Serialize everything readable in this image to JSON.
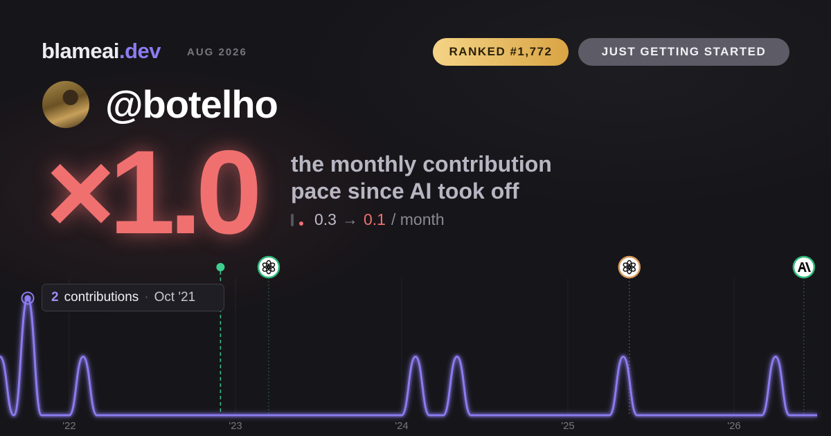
{
  "header": {
    "brand": "blameai",
    "brand_tld": ".dev",
    "period": "AUG 2026",
    "rank_badge": "RANKED #1,772",
    "status_badge": "JUST GETTING STARTED",
    "handle": "@botelho",
    "multiplier": "×1.0",
    "caption": "the monthly contribution pace since AI took off",
    "stats": {
      "before": "0.3",
      "arrow": "→",
      "after": "0.1",
      "unit": "/ month"
    }
  },
  "chart_data": {
    "type": "line",
    "x": [
      2021.5833,
      2021.6667,
      2021.75,
      2021.8333,
      2021.9167,
      2022,
      2022.0833,
      2022.1667,
      2022.25,
      2022.3333,
      2022.4167,
      2022.5,
      2022.5833,
      2022.6667,
      2022.75,
      2022.8333,
      2022.9167,
      2023,
      2023.0833,
      2023.1667,
      2023.25,
      2023.3333,
      2023.4167,
      2023.5,
      2023.5833,
      2023.6667,
      2023.75,
      2023.8333,
      2023.9167,
      2024,
      2024.0833,
      2024.1667,
      2024.25,
      2024.3333,
      2024.4167,
      2024.5,
      2024.5833,
      2024.6667,
      2024.75,
      2024.8333,
      2024.9167,
      2025,
      2025.0833,
      2025.1667,
      2025.25,
      2025.3333,
      2025.4167,
      2025.5,
      2025.5833,
      2025.6667,
      2025.75,
      2025.8333,
      2025.9167,
      2026,
      2026.0833,
      2026.1667,
      2026.25,
      2026.3333,
      2026.4167,
      2026.5
    ],
    "series": [
      {
        "color": "#8b7cf0",
        "values": [
          1,
          0,
          2,
          0,
          0,
          0,
          1,
          0,
          0,
          0,
          0,
          0,
          0,
          0,
          0,
          0,
          0,
          0,
          0,
          0,
          0,
          0,
          0,
          0,
          0,
          0,
          0,
          0,
          0,
          0,
          1,
          0,
          0,
          1,
          0,
          0,
          0,
          0,
          0,
          0,
          0,
          0,
          0,
          0,
          0,
          1,
          0,
          0,
          0,
          0,
          0,
          0,
          0,
          0,
          0,
          0,
          1,
          0,
          0,
          0
        ]
      }
    ],
    "xlim": [
      2021.5833,
      2026.5833
    ],
    "ylim": [
      0,
      2.4
    ],
    "xticks": [
      {
        "value": 2022,
        "label": "'22"
      },
      {
        "value": 2023,
        "label": "'23"
      },
      {
        "value": 2024,
        "label": "'24"
      },
      {
        "value": 2025,
        "label": "'25"
      },
      {
        "value": 2026,
        "label": "'26"
      }
    ],
    "grid": true,
    "events": [
      {
        "x": 2022.91,
        "color": "#3ecf8e",
        "icon": "dot"
      },
      {
        "x": 2023.2,
        "color": "#2fb87a",
        "icon": "openai"
      },
      {
        "x": 2025.37,
        "color": "#d99a5b",
        "icon": "openai"
      },
      {
        "x": 2026.42,
        "color": "#2fb87a",
        "icon": "anthropic"
      }
    ],
    "tooltip": {
      "index": 2,
      "unit": "contributions",
      "date": "Oct '21"
    }
  }
}
